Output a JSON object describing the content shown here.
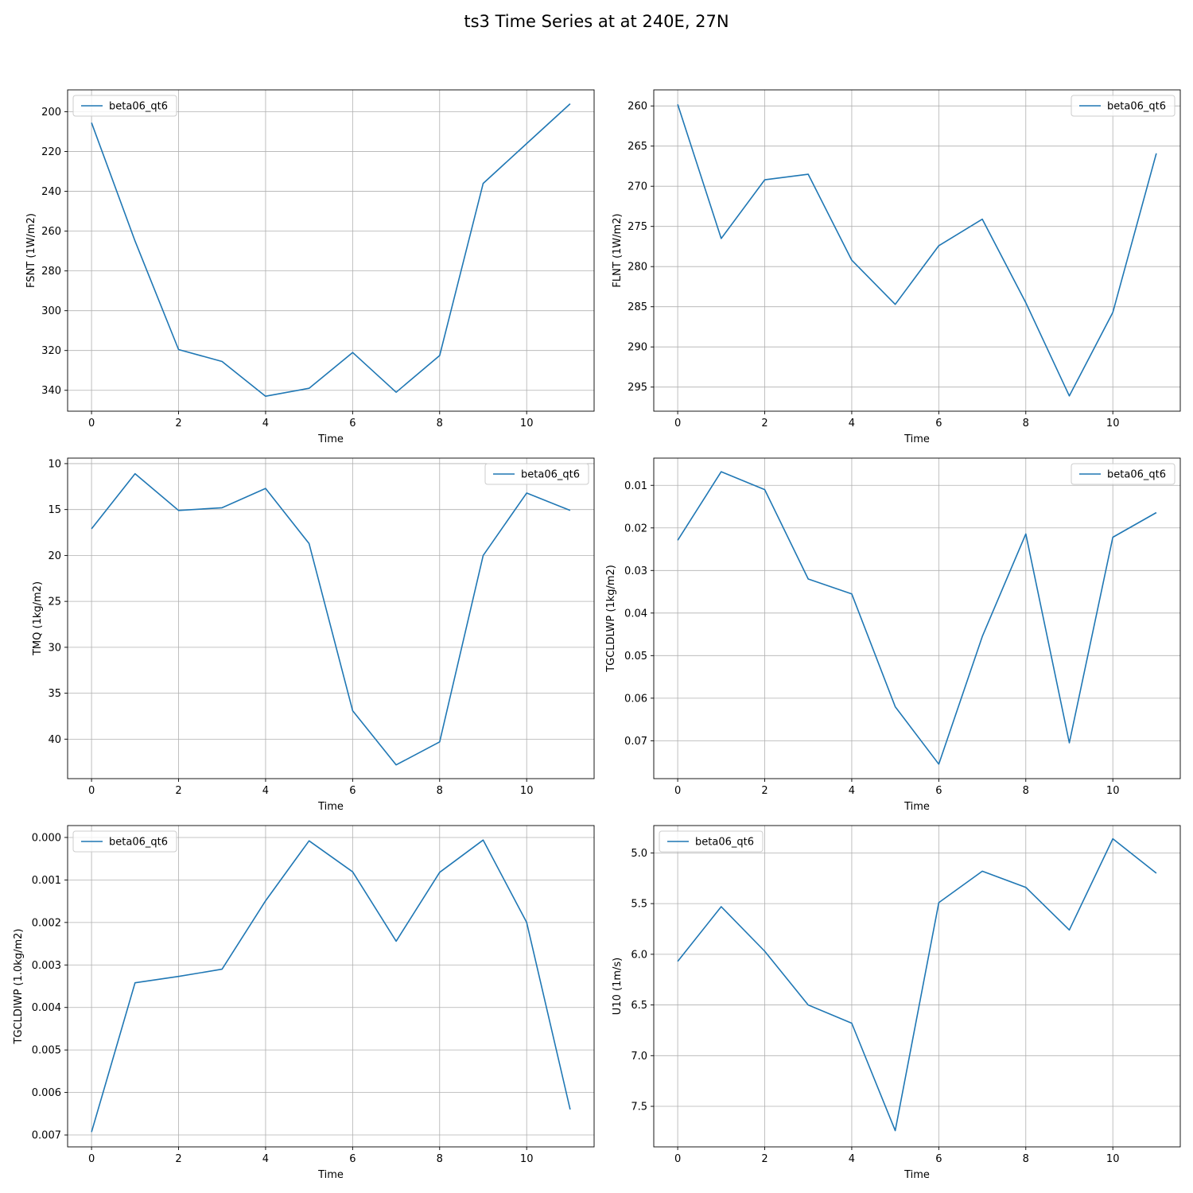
{
  "figure": {
    "title": "ts3 Time Series at at 240E, 27N"
  },
  "colors": {
    "series": "#1f77b4",
    "grid": "#b0b0b0",
    "axes": "#000000"
  },
  "chart_data": [
    {
      "type": "line",
      "xlabel": "Time",
      "ylabel": "FSNT (1W/m2)",
      "y_inverted": true,
      "grid": true,
      "legend_position": "upper left",
      "xlim": [
        -0.55,
        11.55
      ],
      "ylim": [
        350.5,
        189
      ],
      "xticks": [
        0,
        2,
        4,
        6,
        8,
        10
      ],
      "yticks": [
        200,
        220,
        240,
        260,
        280,
        300,
        320,
        340
      ],
      "ytick_labels": [
        "200",
        "220",
        "240",
        "260",
        "280",
        "300",
        "320",
        "340"
      ],
      "x": [
        0,
        1,
        2,
        3,
        4,
        5,
        6,
        7,
        8,
        9,
        10,
        11
      ],
      "series": [
        {
          "name": "beta06_qt6",
          "values": [
            205.5,
            265,
            319.5,
            325.5,
            343,
            339,
            321,
            341,
            322.5,
            236,
            216,
            196
          ]
        }
      ]
    },
    {
      "type": "line",
      "xlabel": "Time",
      "ylabel": "FLNT (1W/m2)",
      "y_inverted": true,
      "grid": true,
      "legend_position": "upper right",
      "xlim": [
        -0.55,
        11.55
      ],
      "ylim": [
        298,
        258
      ],
      "xticks": [
        0,
        2,
        4,
        6,
        8,
        10
      ],
      "yticks": [
        260,
        265,
        270,
        275,
        280,
        285,
        290,
        295
      ],
      "ytick_labels": [
        "260",
        "265",
        "270",
        "275",
        "280",
        "285",
        "290",
        "295"
      ],
      "x": [
        0,
        1,
        2,
        3,
        4,
        5,
        6,
        7,
        8,
        9,
        10,
        11
      ],
      "series": [
        {
          "name": "beta06_qt6",
          "values": [
            259.8,
            276.5,
            269.2,
            268.5,
            279.2,
            284.7,
            277.4,
            274.1,
            284.5,
            296.1,
            285.7,
            265.9
          ]
        }
      ]
    },
    {
      "type": "line",
      "xlabel": "Time",
      "ylabel": "TMQ (1kg/m2)",
      "y_inverted": true,
      "grid": true,
      "legend_position": "upper right",
      "xlim": [
        -0.55,
        11.55
      ],
      "ylim": [
        44.3,
        9.4
      ],
      "xticks": [
        0,
        2,
        4,
        6,
        8,
        10
      ],
      "yticks": [
        10,
        15,
        20,
        25,
        30,
        35,
        40
      ],
      "ytick_labels": [
        "10",
        "15",
        "20",
        "25",
        "30",
        "35",
        "40"
      ],
      "x": [
        0,
        1,
        2,
        3,
        4,
        5,
        6,
        7,
        8,
        9,
        10,
        11
      ],
      "series": [
        {
          "name": "beta06_qt6",
          "values": [
            17.1,
            11.1,
            15.1,
            14.8,
            12.7,
            18.7,
            36.9,
            42.8,
            40.3,
            20.0,
            13.2,
            15.1
          ]
        }
      ]
    },
    {
      "type": "line",
      "xlabel": "Time",
      "ylabel": "TGCLDLWP (1kg/m2)",
      "y_inverted": true,
      "grid": true,
      "legend_position": "upper right",
      "xlim": [
        -0.55,
        11.55
      ],
      "ylim": [
        0.0789,
        0.0036
      ],
      "xticks": [
        0,
        2,
        4,
        6,
        8,
        10
      ],
      "yticks": [
        0.01,
        0.02,
        0.03,
        0.04,
        0.05,
        0.06,
        0.07
      ],
      "ytick_labels": [
        "0.01",
        "0.02",
        "0.03",
        "0.04",
        "0.05",
        "0.06",
        "0.07"
      ],
      "x": [
        0,
        1,
        2,
        3,
        4,
        5,
        6,
        7,
        8,
        9,
        10,
        11
      ],
      "series": [
        {
          "name": "beta06_qt6",
          "values": [
            0.0229,
            0.0068,
            0.011,
            0.032,
            0.0355,
            0.062,
            0.0755,
            0.0455,
            0.0214,
            0.0705,
            0.0222,
            0.0164
          ]
        }
      ]
    },
    {
      "type": "line",
      "xlabel": "Time",
      "ylabel": "TGCLDIWP (1.0kg/m2)",
      "y_inverted": true,
      "grid": true,
      "legend_position": "upper left",
      "xlim": [
        -0.55,
        11.55
      ],
      "ylim": [
        0.00728,
        -0.00028
      ],
      "xticks": [
        0,
        2,
        4,
        6,
        8,
        10
      ],
      "yticks": [
        0,
        0.001,
        0.002,
        0.003,
        0.004,
        0.005,
        0.006,
        0.007
      ],
      "ytick_labels": [
        "0.000",
        "0.001",
        "0.002",
        "0.003",
        "0.004",
        "0.005",
        "0.006",
        "0.007"
      ],
      "x": [
        0,
        1,
        2,
        3,
        4,
        5,
        6,
        7,
        8,
        9,
        10,
        11
      ],
      "series": [
        {
          "name": "beta06_qt6",
          "values": [
            0.00693,
            0.00342,
            0.00327,
            0.0031,
            0.00149,
            8e-05,
            0.00081,
            0.00244,
            0.00082,
            6e-05,
            0.002,
            0.0064
          ]
        }
      ]
    },
    {
      "type": "line",
      "xlabel": "Time",
      "ylabel": "U10 (1m/s)",
      "y_inverted": true,
      "grid": true,
      "legend_position": "upper left",
      "xlim": [
        -0.55,
        11.55
      ],
      "ylim": [
        7.9,
        4.73
      ],
      "xticks": [
        0,
        2,
        4,
        6,
        8,
        10
      ],
      "yticks": [
        5.0,
        5.5,
        6.0,
        6.5,
        7.0,
        7.5
      ],
      "ytick_labels": [
        "5.0",
        "5.5",
        "6.0",
        "6.5",
        "7.0",
        "7.5"
      ],
      "x": [
        0,
        1,
        2,
        3,
        4,
        5,
        6,
        7,
        8,
        9,
        10,
        11
      ],
      "series": [
        {
          "name": "beta06_qt6",
          "values": [
            6.07,
            5.53,
            5.97,
            6.5,
            6.68,
            7.74,
            5.49,
            5.18,
            5.34,
            5.76,
            4.86,
            5.2
          ]
        }
      ]
    }
  ]
}
